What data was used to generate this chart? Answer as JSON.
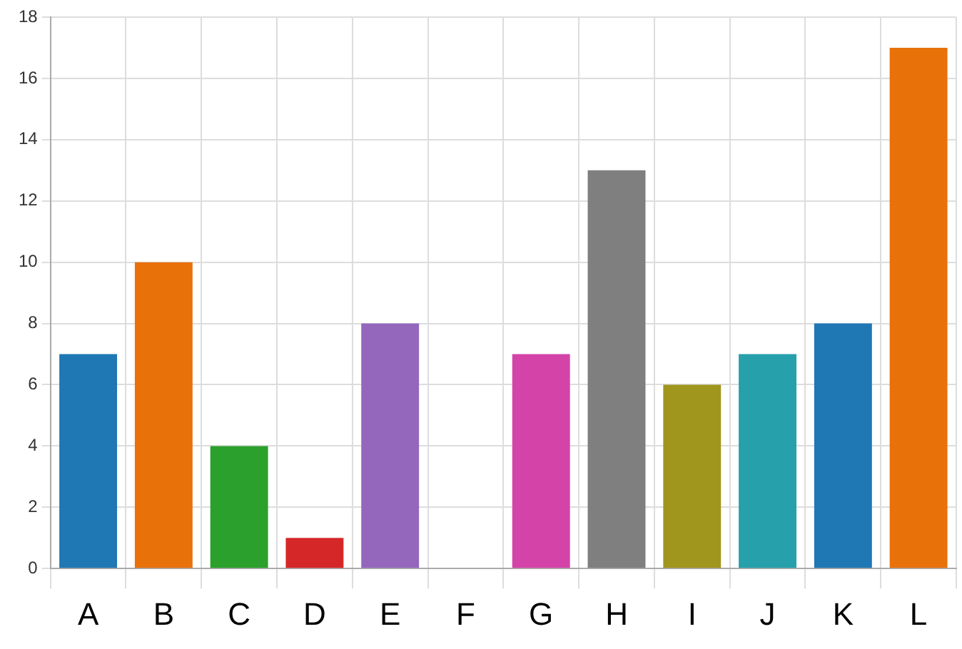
{
  "chart_data": {
    "type": "bar",
    "categories": [
      "A",
      "B",
      "C",
      "D",
      "E",
      "F",
      "G",
      "H",
      "I",
      "J",
      "K",
      "L"
    ],
    "values": [
      7,
      10,
      4,
      1,
      8,
      0,
      7,
      13,
      6,
      7,
      8,
      17
    ],
    "colors": [
      "#1f77b4",
      "#e8710a",
      "#2ca02c",
      "#d62728",
      "#9467bd",
      "#8c564b",
      "#d444a8",
      "#7f7f7f",
      "#a0961e",
      "#26a0ab",
      "#1f77b4",
      "#e8710a"
    ],
    "ylim": [
      0,
      18
    ],
    "yticks": [
      0,
      2,
      4,
      6,
      8,
      10,
      12,
      14,
      16,
      18
    ],
    "grid": true
  }
}
